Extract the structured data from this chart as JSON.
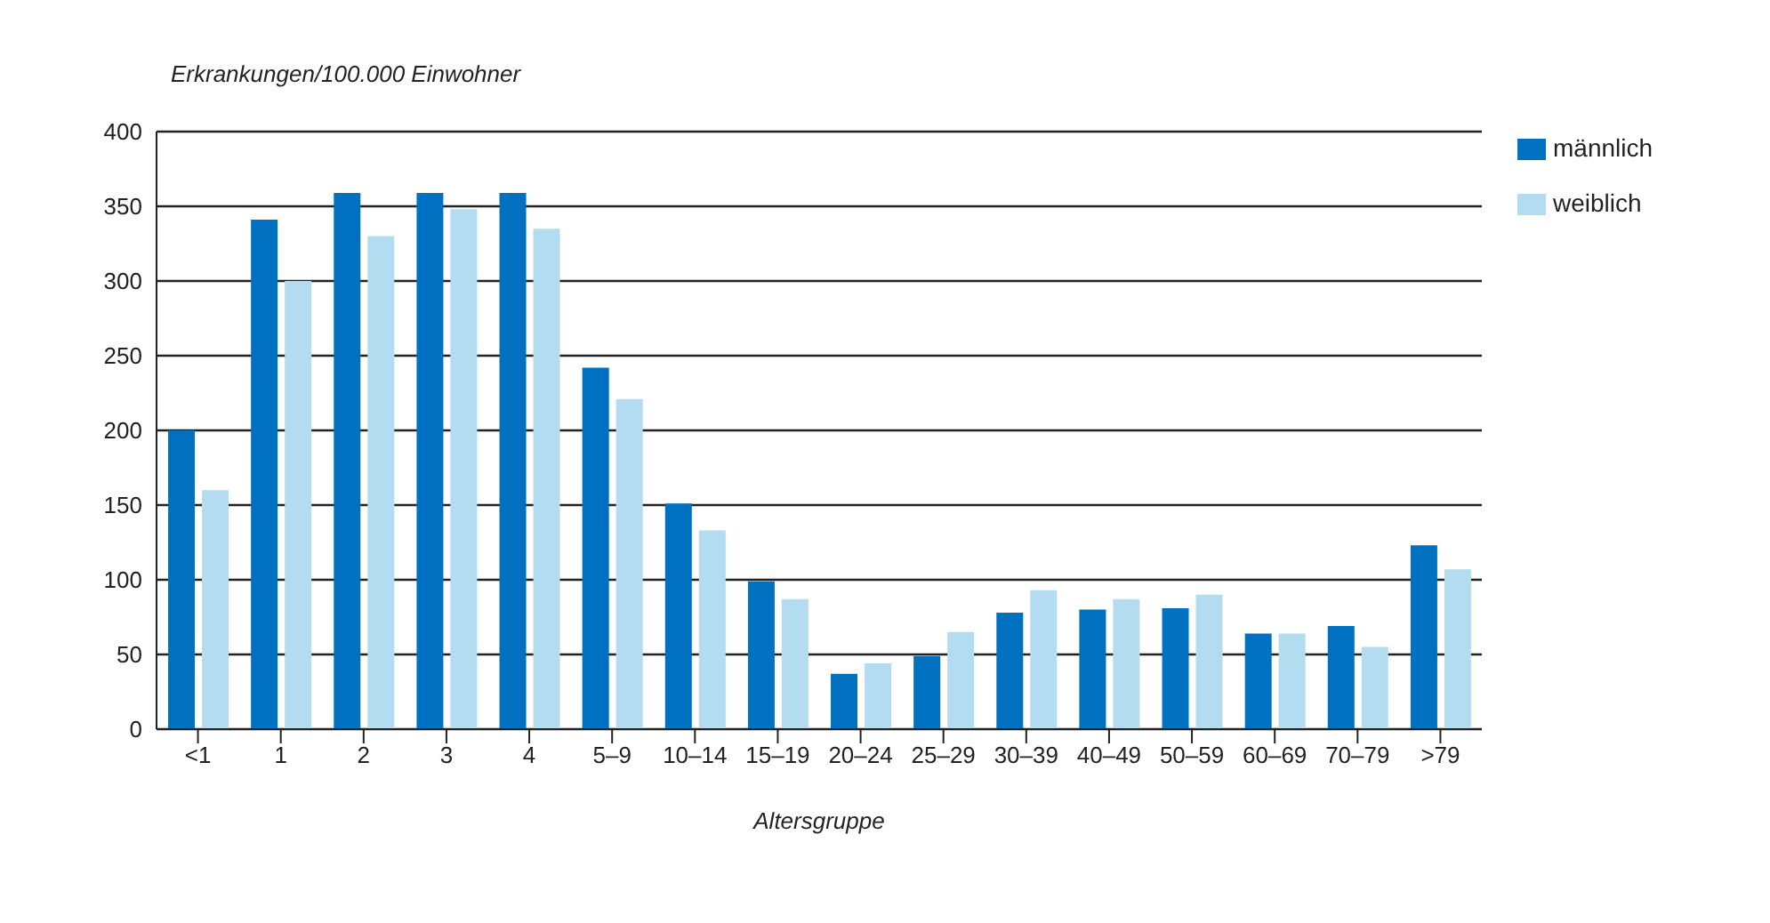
{
  "chart_data": {
    "type": "bar",
    "ylabel": "Erkrankungen/100.000 Einwohner",
    "xlabel": "Altersgruppe",
    "categories": [
      "<1",
      "1",
      "2",
      "3",
      "4",
      "5–9",
      "10–14",
      "15–19",
      "20–24",
      "25–29",
      "30–39",
      "40–49",
      "50–59",
      "60–69",
      "70–79",
      ">79"
    ],
    "series": [
      {
        "name": "männlich",
        "color": "#0070c0",
        "values": [
          200,
          341,
          359,
          359,
          359,
          242,
          151,
          99,
          37,
          49,
          78,
          80,
          81,
          64,
          69,
          123
        ]
      },
      {
        "name": "weiblich",
        "color": "#b4dcf0",
        "values": [
          160,
          300,
          330,
          348,
          335,
          221,
          133,
          87,
          44,
          65,
          93,
          87,
          90,
          64,
          55,
          107
        ]
      }
    ],
    "ylim": [
      0,
      400
    ],
    "yticks": [
      0,
      50,
      100,
      150,
      200,
      250,
      300,
      350,
      400
    ],
    "grid": "y",
    "legend": "top right"
  }
}
